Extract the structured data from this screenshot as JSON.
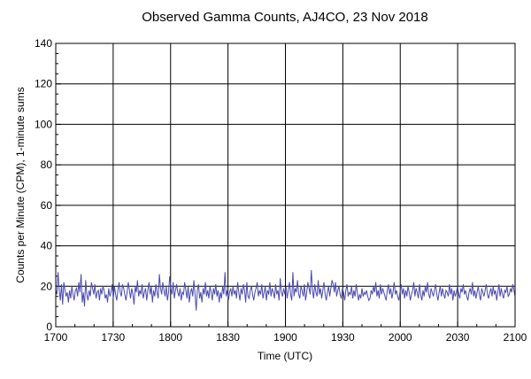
{
  "chart_data": {
    "type": "line",
    "title": "Observed Gamma Counts, AJ4CO, 23 Nov 2018",
    "xlabel": "Time (UTC)",
    "ylabel": "Counts per Minute (CPM), 1-minute sums",
    "xlim": [
      "1700",
      "2100"
    ],
    "ylim": [
      0,
      140
    ],
    "x_ticks": [
      "1700",
      "1730",
      "1800",
      "1830",
      "1900",
      "1930",
      "2000",
      "2030",
      "2100"
    ],
    "y_ticks": [
      0,
      20,
      40,
      60,
      80,
      100,
      120,
      140
    ],
    "grid": true,
    "series": [
      {
        "color": "#4a4ab0",
        "x_start": "1700",
        "x_step_minutes": 1,
        "values": [
          18,
          16,
          27,
          18,
          13,
          21,
          11,
          22,
          18,
          15,
          17,
          12,
          18,
          14,
          20,
          16,
          13,
          18,
          19,
          15,
          22,
          17,
          26,
          12,
          17,
          10,
          23,
          16,
          13,
          18,
          15,
          22,
          19,
          16,
          21,
          14,
          17,
          18,
          13,
          19,
          16,
          20,
          18,
          14,
          16,
          12,
          19,
          15,
          17,
          21,
          14,
          20,
          16,
          13,
          18,
          22,
          17,
          15,
          21,
          19,
          16,
          13,
          17,
          22,
          18,
          14,
          19,
          16,
          11,
          20,
          17,
          23,
          15,
          18,
          16,
          21,
          14,
          17,
          19,
          13,
          18,
          22,
          16,
          20,
          12,
          18,
          15,
          21,
          17,
          14,
          26,
          19,
          16,
          22,
          18,
          15,
          20,
          13,
          17,
          25,
          19,
          16,
          22,
          14,
          18,
          21,
          17,
          15,
          19,
          13,
          17,
          16,
          22,
          18,
          14,
          20,
          12,
          17,
          19,
          15,
          23,
          16,
          8,
          18,
          21,
          14,
          17,
          12,
          19,
          16,
          22,
          15,
          18,
          14,
          20,
          17,
          13,
          19,
          16,
          21,
          15,
          18,
          12,
          17,
          14,
          20,
          16,
          27,
          15,
          18,
          13,
          17,
          19,
          15,
          20,
          16,
          18,
          14,
          22,
          17,
          13,
          19,
          16,
          21,
          18,
          12,
          22,
          15,
          14,
          18,
          20,
          16,
          13,
          17,
          19,
          22,
          15,
          18,
          16,
          21,
          14,
          17,
          20,
          13,
          18,
          16,
          22,
          15,
          19,
          17,
          14,
          21,
          16,
          18,
          13,
          24,
          17,
          15,
          19,
          16,
          20,
          14,
          18,
          22,
          16,
          13,
          27,
          15,
          19,
          17,
          23,
          16,
          14,
          20,
          18,
          15,
          21,
          13,
          17,
          22,
          19,
          16,
          28,
          18,
          14,
          21,
          17,
          15,
          23,
          16,
          19,
          14,
          18,
          22,
          16,
          13,
          17,
          20,
          15,
          19,
          23,
          21,
          17,
          22,
          15,
          18,
          20,
          16,
          14,
          19,
          17,
          13,
          18,
          21,
          15,
          17,
          16,
          20,
          14,
          18,
          15,
          21,
          17,
          13,
          16,
          14,
          19,
          15,
          17,
          16,
          18,
          15,
          13,
          14,
          18,
          16,
          20,
          17,
          22,
          15,
          18,
          14,
          21,
          16,
          19,
          17,
          15,
          13,
          18,
          21,
          16,
          19,
          14,
          17,
          22,
          16,
          18,
          15,
          13,
          17,
          21,
          16,
          19,
          14,
          18,
          15,
          20,
          17,
          13,
          16,
          18,
          22,
          15,
          19,
          17,
          14,
          21,
          16,
          13,
          18,
          15,
          20,
          17,
          22,
          16,
          14,
          19,
          17,
          15,
          18,
          21,
          16,
          13,
          17,
          20,
          15,
          19,
          16,
          14,
          18,
          17,
          15,
          21,
          16,
          19,
          13,
          18,
          15,
          17,
          20,
          16,
          14,
          19,
          17,
          21,
          16,
          18,
          15,
          13,
          17,
          19,
          16,
          22,
          15,
          18,
          14,
          17,
          20,
          16,
          13,
          19,
          17,
          15,
          18,
          21,
          16,
          14,
          17,
          19,
          15,
          20,
          16,
          18,
          13,
          17,
          21,
          15,
          19,
          16,
          14,
          18,
          17,
          20,
          15,
          16,
          19,
          17,
          21,
          18,
          15
        ]
      }
    ]
  }
}
